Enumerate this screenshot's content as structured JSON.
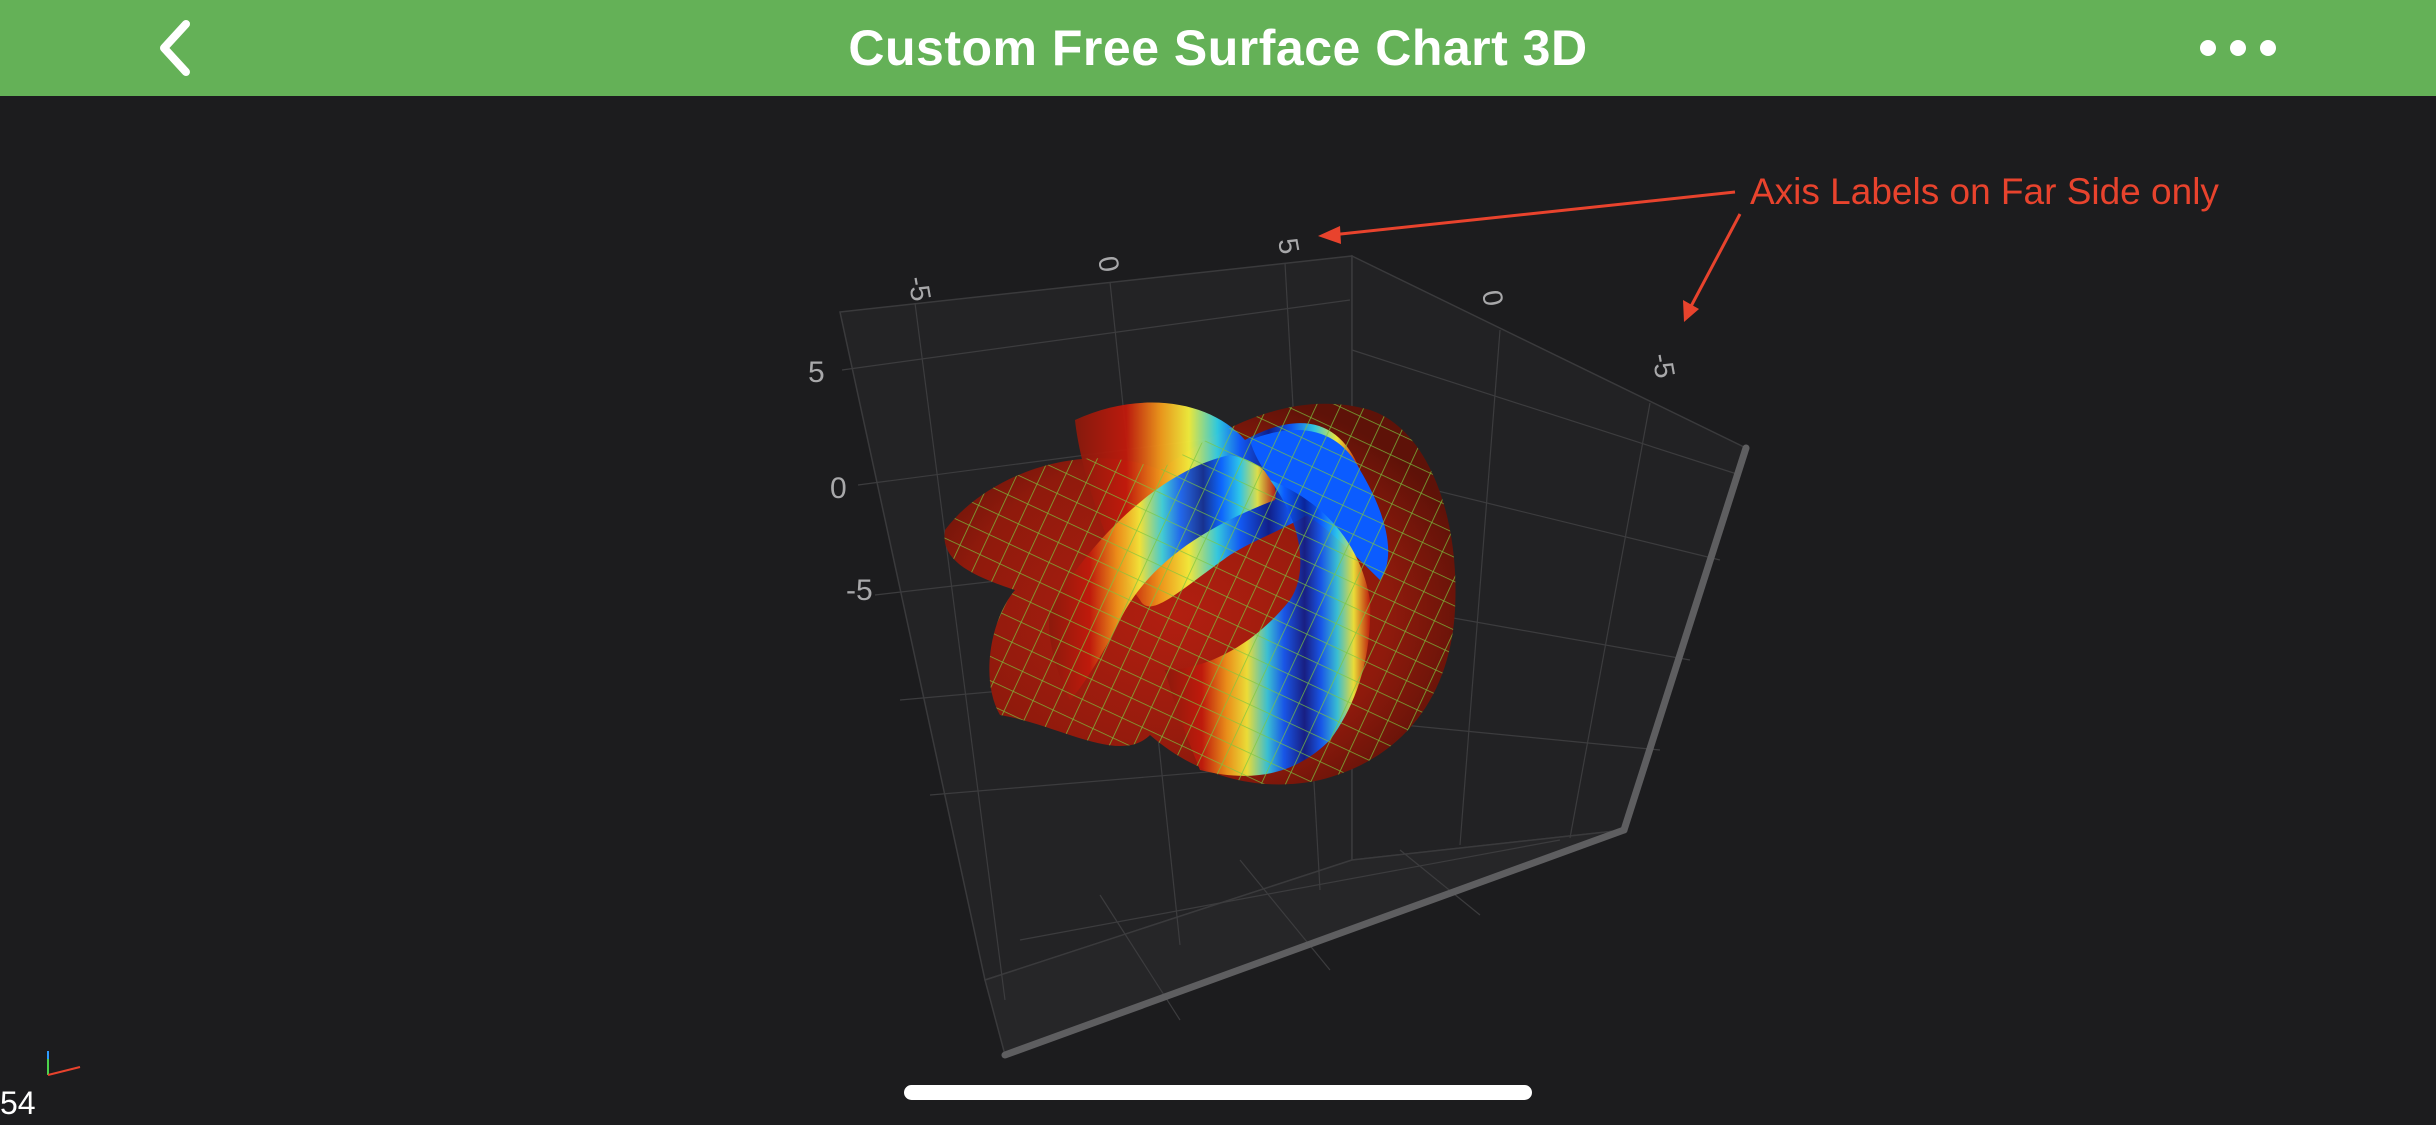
{
  "header": {
    "title": "Custom Free Surface Chart 3D",
    "back_icon": "chevron-left-icon",
    "more_icon": "ellipsis-icon"
  },
  "colors": {
    "header_bg": "#64b157",
    "background": "#1c1c1e",
    "annotation": "#e8432d",
    "mesh": "#7bc63f",
    "surface_gradient": [
      "#0a1f8f",
      "#0b5cff",
      "#2fd0e8",
      "#f4f13c",
      "#f29a1b",
      "#c21a0c",
      "#8a1a0c"
    ]
  },
  "chart_data": {
    "type": "surface3d",
    "axes": {
      "x": {
        "ticks": [
          "-5",
          "0",
          "5"
        ]
      },
      "y": {
        "ticks": [
          "5",
          "0",
          "-5"
        ]
      },
      "z": {
        "ticks": [
          "0",
          "-5"
        ]
      }
    },
    "grid": true,
    "wireframe": true
  },
  "annotation": {
    "text": "Axis Labels on Far Side only"
  },
  "status": {
    "fps": "54"
  }
}
